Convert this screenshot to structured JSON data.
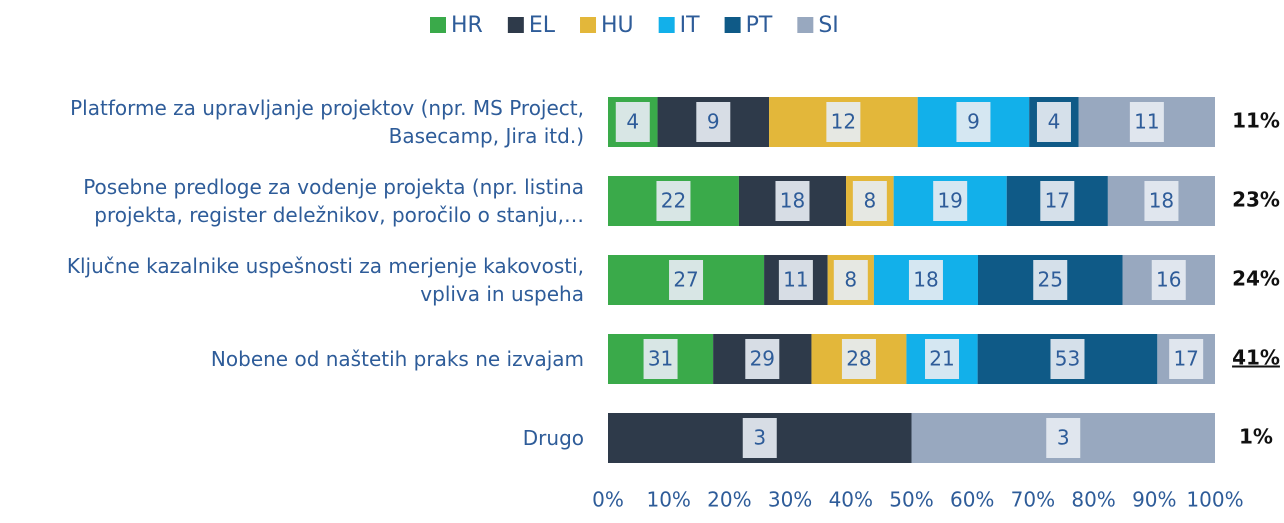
{
  "chart_data": {
    "type": "bar",
    "orientation": "horizontal",
    "stacking": "percent",
    "categories": [
      "Platforme za upravljanje projektov (npr. MS Project,\nBasecamp, Jira itd.)",
      "Posebne predloge za vodenje projekta (npr. listina\nprojekta, register deležnikov, poročilo o stanju,…",
      "Ključne kazalnike uspešnosti za merjenje kakovosti,\nvpliva in uspeha",
      "Nobene od naštetih praks ne izvajam",
      "Drugo"
    ],
    "series": [
      {
        "name": "HR",
        "color": "#3aaa4a",
        "values": [
          4,
          22,
          27,
          31,
          null
        ]
      },
      {
        "name": "EL",
        "color": "#2e3a4a",
        "values": [
          9,
          18,
          11,
          29,
          3
        ]
      },
      {
        "name": "HU",
        "color": "#e3b73a",
        "values": [
          12,
          8,
          8,
          28,
          null
        ]
      },
      {
        "name": "IT",
        "color": "#12b0ea",
        "values": [
          9,
          19,
          18,
          21,
          null
        ]
      },
      {
        "name": "PT",
        "color": "#0f5a87",
        "values": [
          4,
          17,
          25,
          53,
          null
        ]
      },
      {
        "name": "SI",
        "color": "#98a8bf",
        "values": [
          11,
          18,
          16,
          17,
          3
        ]
      }
    ],
    "totals": [
      {
        "value": 11,
        "label": "11%"
      },
      {
        "value": 23,
        "label": "23%"
      },
      {
        "value": 24,
        "label": "24%"
      },
      {
        "value": 41,
        "label": "41%",
        "underlined": true
      },
      {
        "value": 1,
        "label": "1%"
      }
    ],
    "xlim": [
      0,
      100
    ],
    "xticks": [
      {
        "value": 0,
        "label": "0%"
      },
      {
        "value": 10,
        "label": "10%"
      },
      {
        "value": 20,
        "label": "20%"
      },
      {
        "value": 30,
        "label": "30%"
      },
      {
        "value": 40,
        "label": "40%"
      },
      {
        "value": 50,
        "label": "50%"
      },
      {
        "value": 60,
        "label": "60%"
      },
      {
        "value": 70,
        "label": "70%"
      },
      {
        "value": 80,
        "label": "80%"
      },
      {
        "value": 90,
        "label": "90%"
      },
      {
        "value": 100,
        "label": "100%"
      }
    ],
    "legend": "top"
  }
}
